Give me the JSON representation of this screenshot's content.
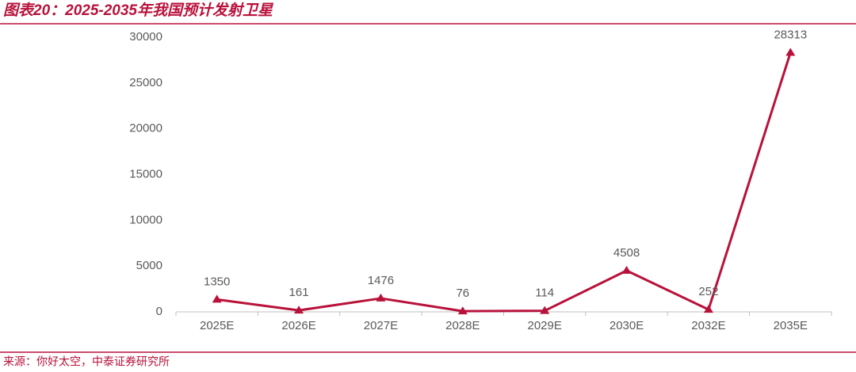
{
  "chart_data": {
    "type": "line",
    "title": "图表20：2025-2035年我国预计发射卫星",
    "source": "来源：你好太空，中泰证券研究所",
    "categories": [
      "2025E",
      "2026E",
      "2027E",
      "2028E",
      "2029E",
      "2030E",
      "2032E",
      "2035E"
    ],
    "series": [
      {
        "color": "#b8123b",
        "values": [
          1350,
          161,
          1476,
          76,
          114,
          4508,
          252,
          28313
        ]
      }
    ],
    "ylim": [
      0,
      30000
    ],
    "yticks": [
      0,
      5000,
      10000,
      15000,
      20000,
      25000,
      30000
    ],
    "grid": false
  }
}
